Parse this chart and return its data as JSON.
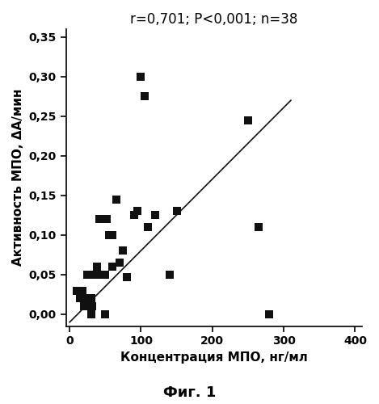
{
  "scatter_x": [
    10,
    15,
    18,
    20,
    22,
    25,
    28,
    30,
    32,
    35,
    38,
    40,
    42,
    45,
    48,
    50,
    52,
    55,
    60,
    65,
    70,
    75,
    80,
    90,
    95,
    100,
    105,
    110,
    120,
    140,
    150,
    250,
    265,
    280,
    50,
    30,
    25,
    60
  ],
  "scatter_y": [
    0.03,
    0.02,
    0.03,
    0.01,
    0.02,
    0.05,
    0.02,
    0.02,
    0.01,
    0.05,
    0.06,
    0.05,
    0.12,
    0.05,
    0.12,
    0.05,
    0.12,
    0.1,
    0.06,
    0.145,
    0.065,
    0.08,
    0.047,
    0.125,
    0.13,
    0.3,
    0.275,
    0.11,
    0.125,
    0.05,
    0.13,
    0.245,
    0.11,
    0.0,
    0.0,
    0.0,
    0.02,
    0.1
  ],
  "line_x": [
    0,
    310
  ],
  "line_y": [
    -0.01,
    0.27
  ],
  "title": "r=0,701; P<0,001; n=38",
  "xlabel": "Концентрация МПО, нг/мл",
  "ylabel": "Активность МПО, ΔА/мин",
  "caption": "Фиг. 1",
  "xlim": [
    -5,
    410
  ],
  "ylim": [
    -0.015,
    0.36
  ],
  "xticks": [
    0,
    100,
    200,
    300,
    400
  ],
  "yticks": [
    0.0,
    0.05,
    0.1,
    0.15,
    0.2,
    0.25,
    0.3,
    0.35
  ],
  "ytick_labels": [
    "0,00",
    "0,05",
    "0,10",
    "0,15",
    "0,20",
    "0,25",
    "0,30",
    "0,35"
  ],
  "xtick_labels": [
    "0",
    "100",
    "200",
    "300",
    "400"
  ],
  "marker_color": "#111111",
  "line_color": "#111111",
  "bg_color": "#ffffff",
  "marker_size": 55,
  "title_fontsize": 12,
  "label_fontsize": 11,
  "tick_fontsize": 10,
  "caption_fontsize": 13
}
